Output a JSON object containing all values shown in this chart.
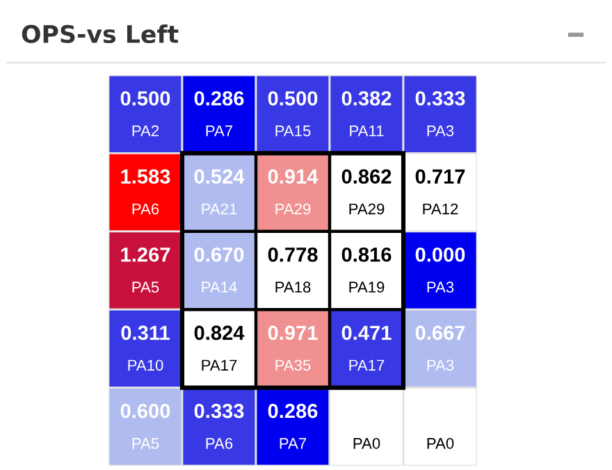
{
  "chart_data": {
    "type": "heatmap",
    "title": "OPS-vs Left",
    "data_labels": true,
    "categories": [
      null,
      null,
      null,
      null,
      null
    ],
    "y_categories": [
      null,
      null,
      null,
      null,
      null
    ],
    "cells": [
      [
        0.5,
        0.286,
        0.5,
        0.382,
        0.333
      ],
      [
        1.583,
        0.524,
        0.914,
        0.862,
        0.717
      ],
      [
        1.267,
        0.67,
        0.778,
        0.816,
        0.0
      ],
      [
        0.311,
        0.824,
        0.971,
        0.471,
        0.667
      ],
      [
        0.6,
        0.333,
        0.286,
        null,
        null
      ]
    ],
    "cell_labels": [
      [
        "0.500",
        "0.286",
        "0.500",
        "0.382",
        "0.333"
      ],
      [
        "1.583",
        "0.524",
        "0.914",
        "0.862",
        "0.717"
      ],
      [
        "1.267",
        "0.670",
        "0.778",
        "0.816",
        "0.000"
      ],
      [
        "0.311",
        "0.824",
        "0.971",
        "0.471",
        "0.667"
      ],
      [
        "0.600",
        "0.333",
        "0.286",
        null,
        null
      ]
    ],
    "annotations": [
      "PA2",
      "PA7",
      "PA15",
      "PA11",
      "PA3",
      "PA6",
      "PA21",
      "PA29",
      "PA29",
      "PA12",
      "PA5",
      "PA14",
      "PA18",
      "PA19",
      "PA3",
      "PA10",
      "PA17",
      "PA35",
      "PA17",
      "PA3",
      "PA5",
      "PA6",
      "PA7",
      "PA0",
      "PA0"
    ],
    "colors": [
      [
        "#3838e4",
        "#0000f0",
        "#3838e4",
        "#3838e4",
        "#3838e4"
      ],
      [
        "#ff0000",
        "#b0bcf0",
        "#f09090",
        "#ffffff",
        "#ffffff"
      ],
      [
        "#c8103c",
        "#b0bcf0",
        "#ffffff",
        "#ffffff",
        "#0000f0"
      ],
      [
        "#3838e4",
        "#ffffff",
        "#f09090",
        "#3838e4",
        "#b0bcf0"
      ],
      [
        "#b0bcf0",
        "#3838e4",
        "#0000f0",
        "#ffffff",
        "#ffffff"
      ]
    ]
  }
}
